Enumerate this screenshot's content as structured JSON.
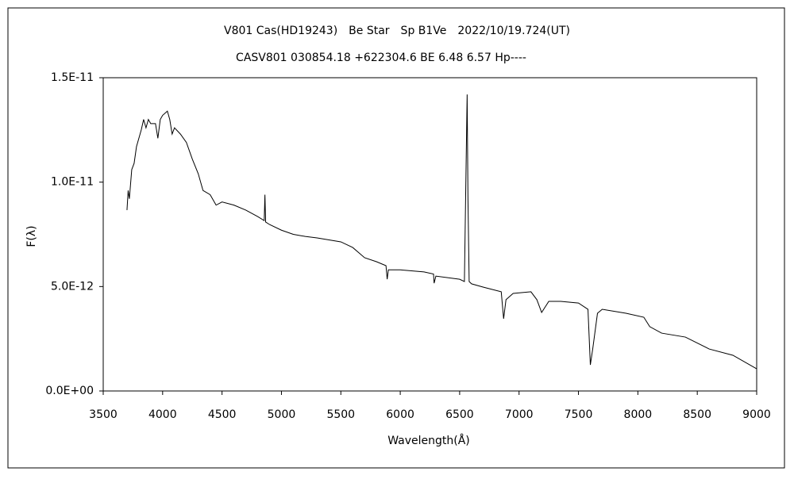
{
  "chart_data": {
    "type": "line",
    "title": "V801 Cas(HD19243)　Be Star　Sp B1Ve　2022/10/19.724(UT)",
    "subtitle": "CASV801 030854.18 +622304.6 BE 6.48 6.57 Hp----",
    "x_label": "Wavelength(Å)",
    "y_label": "F(λ)",
    "xlim": [
      3500,
      9000
    ],
    "xticks": [
      3500,
      4000,
      4500,
      5000,
      5500,
      6000,
      6500,
      7000,
      7500,
      8000,
      8500,
      9000
    ],
    "ylim": [
      0,
      1.5e-11
    ],
    "yticks": [
      {
        "value": 0,
        "label": "0.0E+00"
      },
      {
        "value": 5e-12,
        "label": "5.0E-12"
      },
      {
        "value": 1e-11,
        "label": "1.0E-11"
      },
      {
        "value": 1.5e-11,
        "label": "1.5E-11"
      }
    ],
    "grid": false,
    "series": [
      {
        "color": "#000000",
        "x": [
          3700,
          3710,
          3720,
          3740,
          3760,
          3780,
          3800,
          3820,
          3840,
          3860,
          3880,
          3900,
          3940,
          3960,
          3980,
          4000,
          4040,
          4060,
          4080,
          4100,
          4150,
          4200,
          4250,
          4300,
          4340,
          4400,
          4450,
          4500,
          4600,
          4700,
          4800,
          4855,
          4861,
          4867,
          4900,
          5000,
          5100,
          5200,
          5300,
          5500,
          5600,
          5700,
          5800,
          5880,
          5890,
          5900,
          6000,
          6200,
          6280,
          6285,
          6300,
          6500,
          6540,
          6555,
          6563,
          6570,
          6580,
          6600,
          6700,
          6850,
          6870,
          6890,
          6950,
          7100,
          7150,
          7190,
          7250,
          7350,
          7500,
          7580,
          7600,
          7620,
          7660,
          7700,
          7900,
          8050,
          8100,
          8200,
          8400,
          8600,
          8800,
          9000
        ],
        "values": [
          8.66e-12,
          9.6e-12,
          9.2e-12,
          1.06e-11,
          1.09e-11,
          1.17e-11,
          1.21e-11,
          1.25e-11,
          1.3e-11,
          1.26e-11,
          1.3e-11,
          1.28e-11,
          1.28e-11,
          1.21e-11,
          1.3e-11,
          1.32e-11,
          1.34e-11,
          1.3e-11,
          1.23e-11,
          1.26e-11,
          1.23e-11,
          1.19e-11,
          1.11e-11,
          1.04e-11,
          9.6e-12,
          9.4e-12,
          8.9e-12,
          9.05e-12,
          8.9e-12,
          8.66e-12,
          8.35e-12,
          8.16e-12,
          9.4e-12,
          8.09e-12,
          7.97e-12,
          7.7e-12,
          7.5e-12,
          7.4e-12,
          7.33e-12,
          7.14e-12,
          6.87e-12,
          6.38e-12,
          6.19e-12,
          6e-12,
          5.35e-12,
          5.8e-12,
          5.8e-12,
          5.7e-12,
          5.6e-12,
          5.16e-12,
          5.5e-12,
          5.35e-12,
          5.24e-12,
          1.11e-11,
          1.42e-11,
          9.2e-12,
          5.24e-12,
          5.13e-12,
          4.97e-12,
          4.75e-12,
          3.46e-12,
          4.37e-12,
          4.67e-12,
          4.75e-12,
          4.37e-12,
          3.76e-12,
          4.29e-12,
          4.29e-12,
          4.21e-12,
          3.91e-12,
          1.25e-12,
          2.01e-12,
          3.72e-12,
          3.91e-12,
          3.72e-12,
          3.53e-12,
          3.08e-12,
          2.77e-12,
          2.58e-12,
          2.01e-12,
          1.71e-12,
          1.06e-12
        ]
      }
    ]
  }
}
